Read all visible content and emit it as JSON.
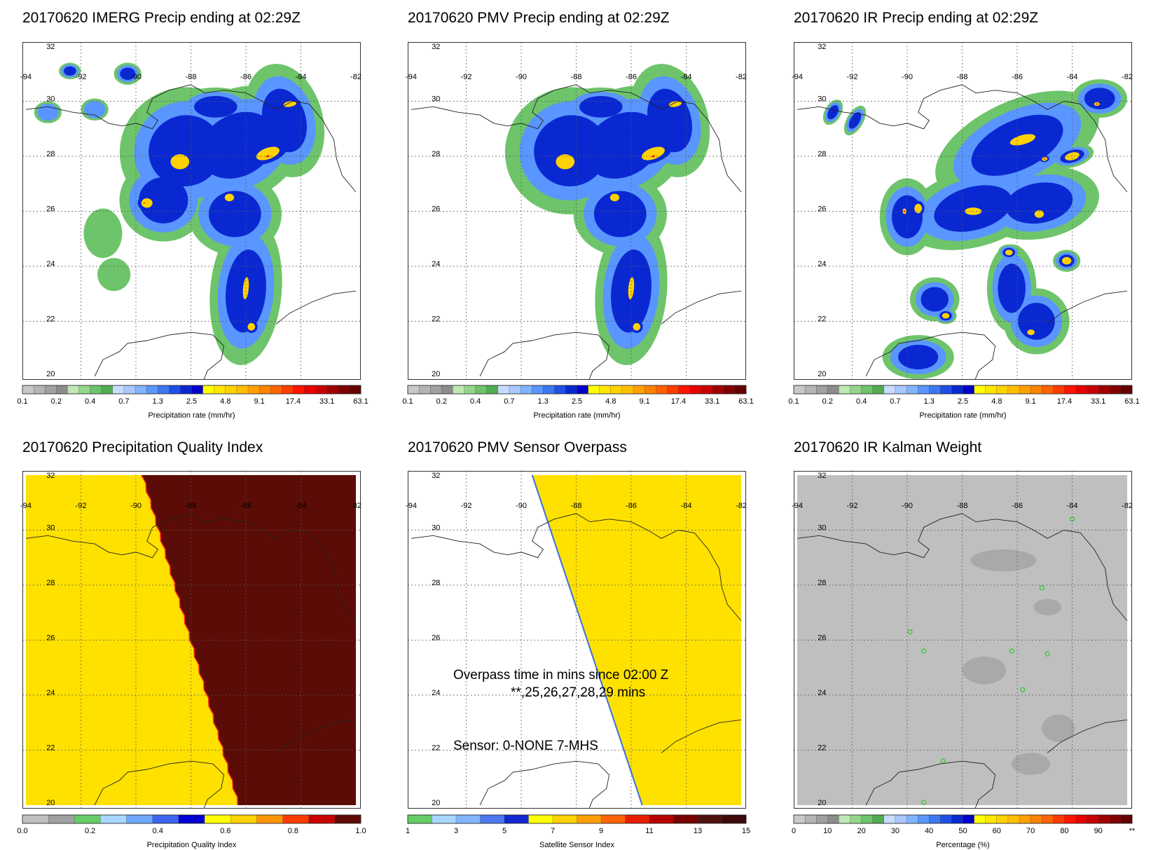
{
  "panels": [
    {
      "title": "20170620 IMERG Precip ending at 02:29Z",
      "field": "imerg",
      "colorbar": {
        "kind": "precip",
        "labels": [
          "0.1",
          "0.2",
          "0.4",
          "0.7",
          "1.3",
          "2.5",
          "4.8",
          "9.1",
          "17.4",
          "33.1",
          "63.1"
        ],
        "title": "Precipitation rate (mm/hr)"
      }
    },
    {
      "title": "20170620 PMV Precip ending at 02:29Z",
      "field": "pmv",
      "colorbar": {
        "kind": "precip",
        "labels": [
          "0.1",
          "0.2",
          "0.4",
          "0.7",
          "1.3",
          "2.5",
          "4.8",
          "9.1",
          "17.4",
          "33.1",
          "63.1"
        ],
        "title": "Precipitation rate (mm/hr)"
      }
    },
    {
      "title": "20170620 IR Precip ending at 02:29Z",
      "field": "ir",
      "colorbar": {
        "kind": "precip",
        "labels": [
          "0.1",
          "0.2",
          "0.4",
          "0.7",
          "1.3",
          "2.5",
          "4.8",
          "9.1",
          "17.4",
          "33.1",
          "63.1"
        ],
        "title": "Precipitation rate (mm/hr)"
      }
    },
    {
      "title": "20170620 Precipitation Quality Index",
      "field": "pqi",
      "colorbar": {
        "kind": "pqi",
        "labels": [
          "0.0",
          "0.2",
          "0.4",
          "0.6",
          "0.8",
          "1.0"
        ],
        "title": "Precipitation Quality Index"
      }
    },
    {
      "title": "20170620 PMV Sensor Overpass",
      "field": "overpass",
      "annotations": [
        "Overpass time in mins since 02:00 Z",
        "**,25,26,27,28,29 mins",
        "Sensor:   0-NONE  7-MHS"
      ],
      "colorbar": {
        "kind": "sensor",
        "labels": [
          "1",
          "3",
          "5",
          "7",
          "9",
          "11",
          "13",
          "15"
        ],
        "title": "Satellite Sensor Index"
      }
    },
    {
      "title": "20170620 IR Kalman Weight",
      "field": "kalman",
      "colorbar": {
        "kind": "percent",
        "labels": [
          "0",
          "10",
          "20",
          "30",
          "40",
          "50",
          "60",
          "70",
          "80",
          "90",
          "**"
        ],
        "title": "Percentage (%)"
      }
    }
  ],
  "map": {
    "lon_range": [
      -94,
      -82
    ],
    "lat_range": [
      20,
      32
    ],
    "lon_labels": [
      "-94",
      "-92",
      "-90",
      "-88",
      "-86",
      "-84",
      "-82"
    ],
    "lat_labels": [
      "32",
      "30",
      "28",
      "26",
      "24",
      "22",
      "20"
    ]
  },
  "colors": {
    "precip": [
      "#c8c8c8",
      "#b4b4b4",
      "#a0a0a0",
      "#8c8c8c",
      "#bfe8b4",
      "#96d68c",
      "#6ec46a",
      "#50ad50",
      "#c8dcff",
      "#aac8ff",
      "#82b4ff",
      "#5a96ff",
      "#3c78f0",
      "#1e50e6",
      "#0a28d2",
      "#0000c8",
      "#ffff00",
      "#ffe600",
      "#ffd200",
      "#ffbe00",
      "#ffa000",
      "#ff8200",
      "#ff6400",
      "#ff3c00",
      "#ff1400",
      "#e60000",
      "#c80000",
      "#a00000",
      "#800000",
      "#640000"
    ],
    "pqi": [
      "#c0c0c0",
      "#a0a0a0",
      "#66cc66",
      "#a8d8ff",
      "#6ea8ff",
      "#3c64f0",
      "#0000d2",
      "#ffff00",
      "#ffd200",
      "#ff9600",
      "#ff3c00",
      "#c80000",
      "#600a04"
    ],
    "sensor": [
      "#66cc66",
      "#a8d8ff",
      "#82b4ff",
      "#4c78f0",
      "#1428d2",
      "#ffff00",
      "#ffd200",
      "#ffa000",
      "#ff6400",
      "#e61e00",
      "#b40000",
      "#780000",
      "#501010",
      "#3c0a0a"
    ],
    "pqi_low": "#ffe100",
    "pqi_high": "#5c0c06",
    "overpass_fill": "#ffe100",
    "overpass_edge": "#3a6fe0",
    "kalman_bg": "#bfbfbf",
    "coast": "#222222"
  }
}
